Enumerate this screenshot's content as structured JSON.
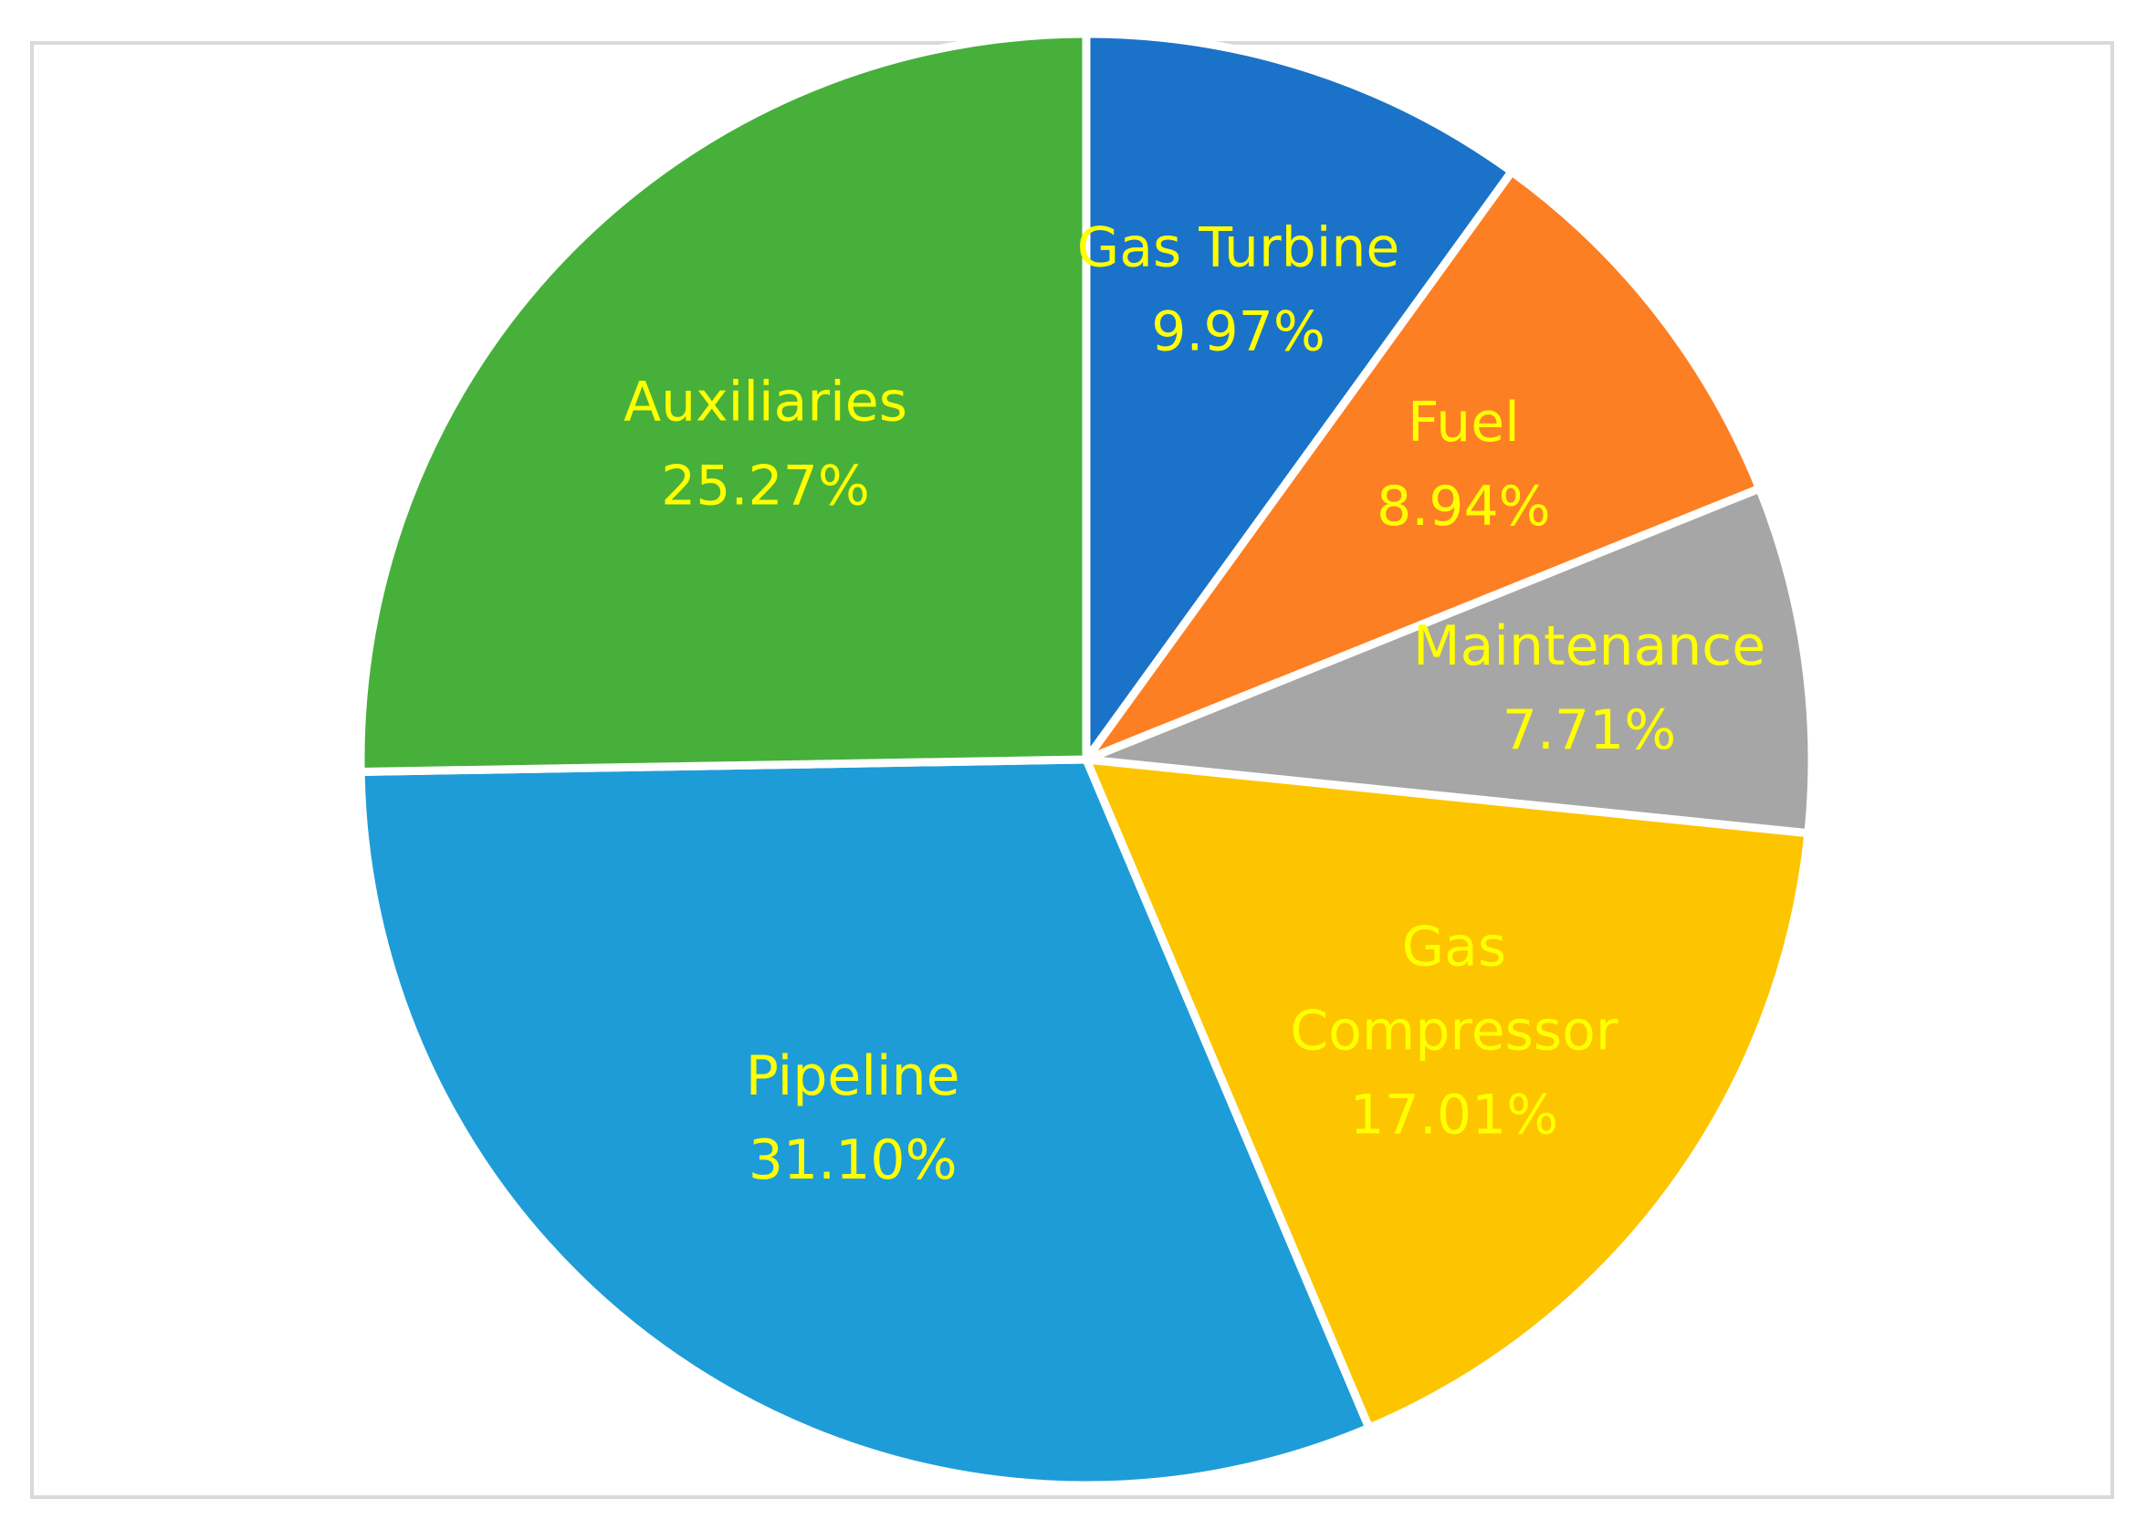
{
  "chart_data": {
    "type": "pie",
    "start_angle_deg": 0,
    "direction": "clockwise",
    "label_color": "#ffff00",
    "slice_border_color": "#ffffff",
    "slices": [
      {
        "label_lines": [
          "Gas Turbine"
        ],
        "value": 9.97,
        "value_label": "9.97%",
        "color": "#1a73c9"
      },
      {
        "label_lines": [
          "Fuel"
        ],
        "value": 8.94,
        "value_label": "8.94%",
        "color": "#fd7f23"
      },
      {
        "label_lines": [
          "Maintenance"
        ],
        "value": 7.71,
        "value_label": "7.71%",
        "color": "#a6a6a6"
      },
      {
        "label_lines": [
          "Gas",
          "Compressor"
        ],
        "value": 17.01,
        "value_label": "17.01%",
        "color": "#fdc400"
      },
      {
        "label_lines": [
          "Pipeline"
        ],
        "value": 31.1,
        "value_label": "31.10%",
        "color": "#1e9cd8"
      },
      {
        "label_lines": [
          "Auxiliaries"
        ],
        "value": 25.27,
        "value_label": "25.27%",
        "color": "#46b03b"
      }
    ]
  }
}
